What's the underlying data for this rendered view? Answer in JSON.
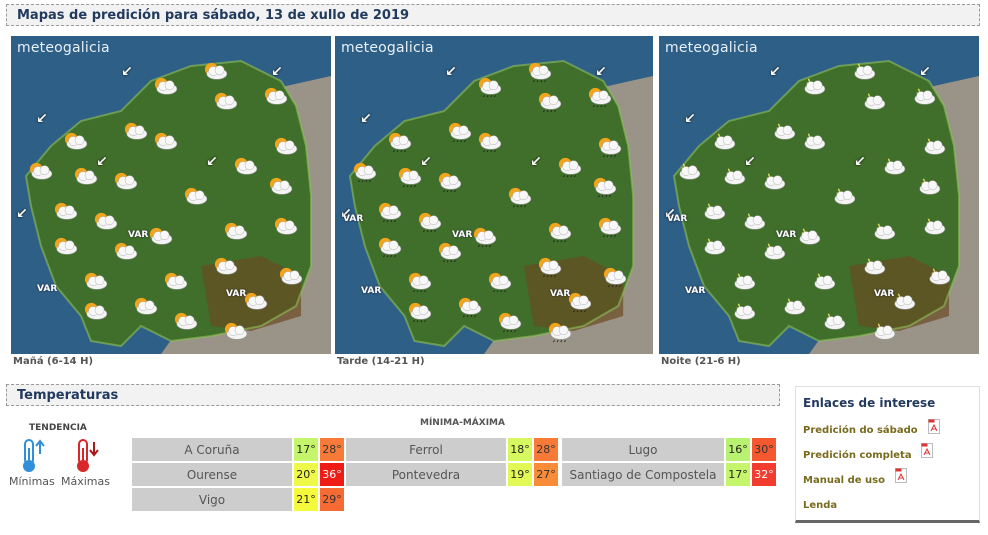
{
  "header": {
    "title": "Mapas de predición para sábado, 13 de xullo de 2019"
  },
  "maps": [
    {
      "brand": "meteogalicia",
      "caption": "Mañá (6-14 H)",
      "var_labels": [
        "VAR",
        "VAR",
        "VAR"
      ],
      "sky": "sun-cloud"
    },
    {
      "brand": "meteogalicia",
      "caption": "Tarde (14-21 H)",
      "var_labels": [
        "VAR",
        "VAR",
        "VAR",
        "VAR"
      ],
      "sky": "rain-showers"
    },
    {
      "brand": "meteogalicia",
      "caption": "Noite (21-6 H)",
      "var_labels": [
        "VAR",
        "VAR",
        "VAR",
        "VAR"
      ],
      "sky": "night-cloud"
    }
  ],
  "temperatures": {
    "title": "Temperaturas",
    "tendency": {
      "title": "TENDENCIA",
      "min_label": "Mínimas",
      "max_label": "Máximas"
    },
    "minmax_title": "MÍNIMA-MÁXIMA",
    "cities": [
      {
        "name": "A Coruña",
        "min": "17°",
        "max": "28°",
        "min_color": "#c4f56a",
        "max_color": "#f87a38"
      },
      {
        "name": "Ferrol",
        "min": "18°",
        "max": "28°",
        "min_color": "#d6f75e",
        "max_color": "#f87a38"
      },
      {
        "name": "Lugo",
        "min": "16°",
        "max": "30°",
        "min_color": "#b8f270",
        "max_color": "#f4582e"
      },
      {
        "name": "Ourense",
        "min": "20°",
        "max": "36°",
        "min_color": "#eef94a",
        "max_color": "#ee1c14"
      },
      {
        "name": "Pontevedra",
        "min": "19°",
        "max": "27°",
        "min_color": "#e2f854",
        "max_color": "#f88c38"
      },
      {
        "name": "Santiago de Compostela",
        "min": "17°",
        "max": "32°",
        "min_color": "#c4f56a",
        "max_color": "#f23c30"
      },
      {
        "name": "Vigo",
        "min": "21°",
        "max": "29°",
        "min_color": "#f6fa3c",
        "max_color": "#f66a34"
      }
    ]
  },
  "links": {
    "title": "Enlaces de interese",
    "items": [
      {
        "label": "Predición do sábado",
        "pdf": true
      },
      {
        "label": "Predición completa",
        "pdf": true
      },
      {
        "label": "Manual de uso",
        "pdf": true
      },
      {
        "label": "Lenda",
        "pdf": false
      }
    ]
  }
}
